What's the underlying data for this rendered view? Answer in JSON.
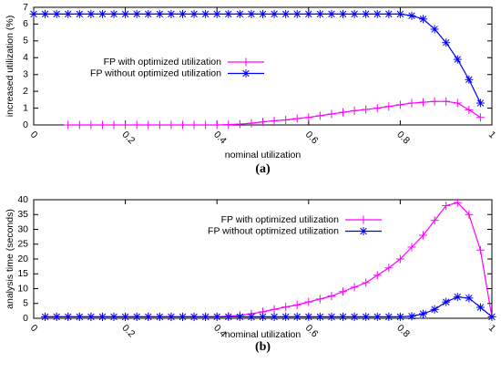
{
  "chart_data": [
    {
      "type": "line",
      "caption": "(a)",
      "x_label": "nominal utilization",
      "y_label": "increased utilization (%)",
      "xlim": [
        0,
        1
      ],
      "xticks": [
        0,
        0.2,
        0.4,
        0.6,
        0.8,
        1
      ],
      "ylim": [
        0,
        7
      ],
      "yticks": [
        0,
        1,
        2,
        3,
        4,
        5,
        6,
        7
      ],
      "legend_position": "center left",
      "series": [
        {
          "name": "FP with optimized utilization",
          "color": "#ff00ff",
          "marker": "plus",
          "x": [
            0.075,
            0.1,
            0.125,
            0.15,
            0.175,
            0.2,
            0.225,
            0.25,
            0.275,
            0.3,
            0.325,
            0.35,
            0.375,
            0.4,
            0.425,
            0.45,
            0.475,
            0.5,
            0.525,
            0.55,
            0.575,
            0.6,
            0.625,
            0.65,
            0.675,
            0.7,
            0.725,
            0.75,
            0.775,
            0.8,
            0.825,
            0.85,
            0.875,
            0.9,
            0.925,
            0.95,
            0.975
          ],
          "values": [
            0,
            0,
            0,
            0,
            0,
            0,
            0,
            0,
            0,
            0,
            0,
            0,
            0,
            0,
            0.02,
            0.05,
            0.1,
            0.18,
            0.25,
            0.3,
            0.38,
            0.45,
            0.55,
            0.65,
            0.75,
            0.85,
            0.92,
            1.0,
            1.1,
            1.2,
            1.3,
            1.35,
            1.4,
            1.4,
            1.3,
            0.9,
            0.45
          ]
        },
        {
          "name": "FP without optimized utilization",
          "color": "#0000ff",
          "marker": "star",
          "x": [
            0,
            0.025,
            0.05,
            0.075,
            0.1,
            0.125,
            0.15,
            0.175,
            0.2,
            0.225,
            0.25,
            0.275,
            0.3,
            0.325,
            0.35,
            0.375,
            0.4,
            0.425,
            0.45,
            0.475,
            0.5,
            0.525,
            0.55,
            0.575,
            0.6,
            0.625,
            0.65,
            0.675,
            0.7,
            0.725,
            0.75,
            0.775,
            0.8,
            0.825,
            0.85,
            0.875,
            0.9,
            0.925,
            0.95,
            0.975
          ],
          "values": [
            6.6,
            6.6,
            6.6,
            6.6,
            6.6,
            6.6,
            6.6,
            6.6,
            6.6,
            6.6,
            6.6,
            6.6,
            6.6,
            6.6,
            6.6,
            6.6,
            6.6,
            6.6,
            6.6,
            6.6,
            6.6,
            6.6,
            6.6,
            6.6,
            6.6,
            6.6,
            6.6,
            6.6,
            6.6,
            6.6,
            6.6,
            6.6,
            6.6,
            6.5,
            6.3,
            5.7,
            4.9,
            3.9,
            2.7,
            1.3
          ]
        }
      ]
    },
    {
      "type": "line",
      "caption": "(b)",
      "x_label": "nominal utilization",
      "y_label": "analysis time (seconds)",
      "xlim": [
        0,
        1
      ],
      "xticks": [
        0,
        0.2,
        0.4,
        0.6,
        0.8,
        1
      ],
      "ylim": [
        0,
        40
      ],
      "yticks": [
        0,
        5,
        10,
        15,
        20,
        25,
        30,
        35,
        40
      ],
      "legend_position": "upper center",
      "series": [
        {
          "name": "FP with optimized utilization",
          "color": "#ff00ff",
          "marker": "plus",
          "x": [
            0.025,
            0.05,
            0.075,
            0.1,
            0.125,
            0.15,
            0.175,
            0.2,
            0.225,
            0.25,
            0.275,
            0.3,
            0.325,
            0.35,
            0.375,
            0.4,
            0.425,
            0.45,
            0.475,
            0.5,
            0.525,
            0.55,
            0.575,
            0.6,
            0.625,
            0.65,
            0.675,
            0.7,
            0.725,
            0.75,
            0.775,
            0.8,
            0.825,
            0.85,
            0.875,
            0.9,
            0.925,
            0.95,
            0.975,
            1
          ],
          "values": [
            0.5,
            0.5,
            0.5,
            0.5,
            0.5,
            0.5,
            0.5,
            0.5,
            0.5,
            0.5,
            0.5,
            0.5,
            0.5,
            0.5,
            0.5,
            0.5,
            0.7,
            1,
            1.5,
            2.2,
            3,
            3.8,
            4.5,
            5.5,
            6.5,
            7.5,
            9,
            10.5,
            12,
            14.5,
            17,
            20,
            24,
            28,
            33,
            38,
            39,
            35,
            23,
            0.5
          ]
        },
        {
          "name": "FP without optimized utilization",
          "color": "#0000ff",
          "marker": "star",
          "x": [
            0.025,
            0.05,
            0.075,
            0.1,
            0.125,
            0.15,
            0.175,
            0.2,
            0.225,
            0.25,
            0.275,
            0.3,
            0.325,
            0.35,
            0.375,
            0.4,
            0.425,
            0.45,
            0.475,
            0.5,
            0.525,
            0.55,
            0.575,
            0.6,
            0.625,
            0.65,
            0.675,
            0.7,
            0.725,
            0.75,
            0.775,
            0.8,
            0.825,
            0.85,
            0.875,
            0.9,
            0.925,
            0.95,
            0.975,
            1
          ],
          "values": [
            0.5,
            0.5,
            0.5,
            0.5,
            0.5,
            0.5,
            0.5,
            0.5,
            0.5,
            0.5,
            0.5,
            0.5,
            0.5,
            0.5,
            0.5,
            0.5,
            0.5,
            0.5,
            0.5,
            0.5,
            0.5,
            0.5,
            0.5,
            0.5,
            0.5,
            0.5,
            0.5,
            0.5,
            0.5,
            0.5,
            0.5,
            0.5,
            0.7,
            1.5,
            3,
            5.5,
            7.2,
            6.8,
            3.7,
            0.5
          ]
        }
      ]
    }
  ]
}
